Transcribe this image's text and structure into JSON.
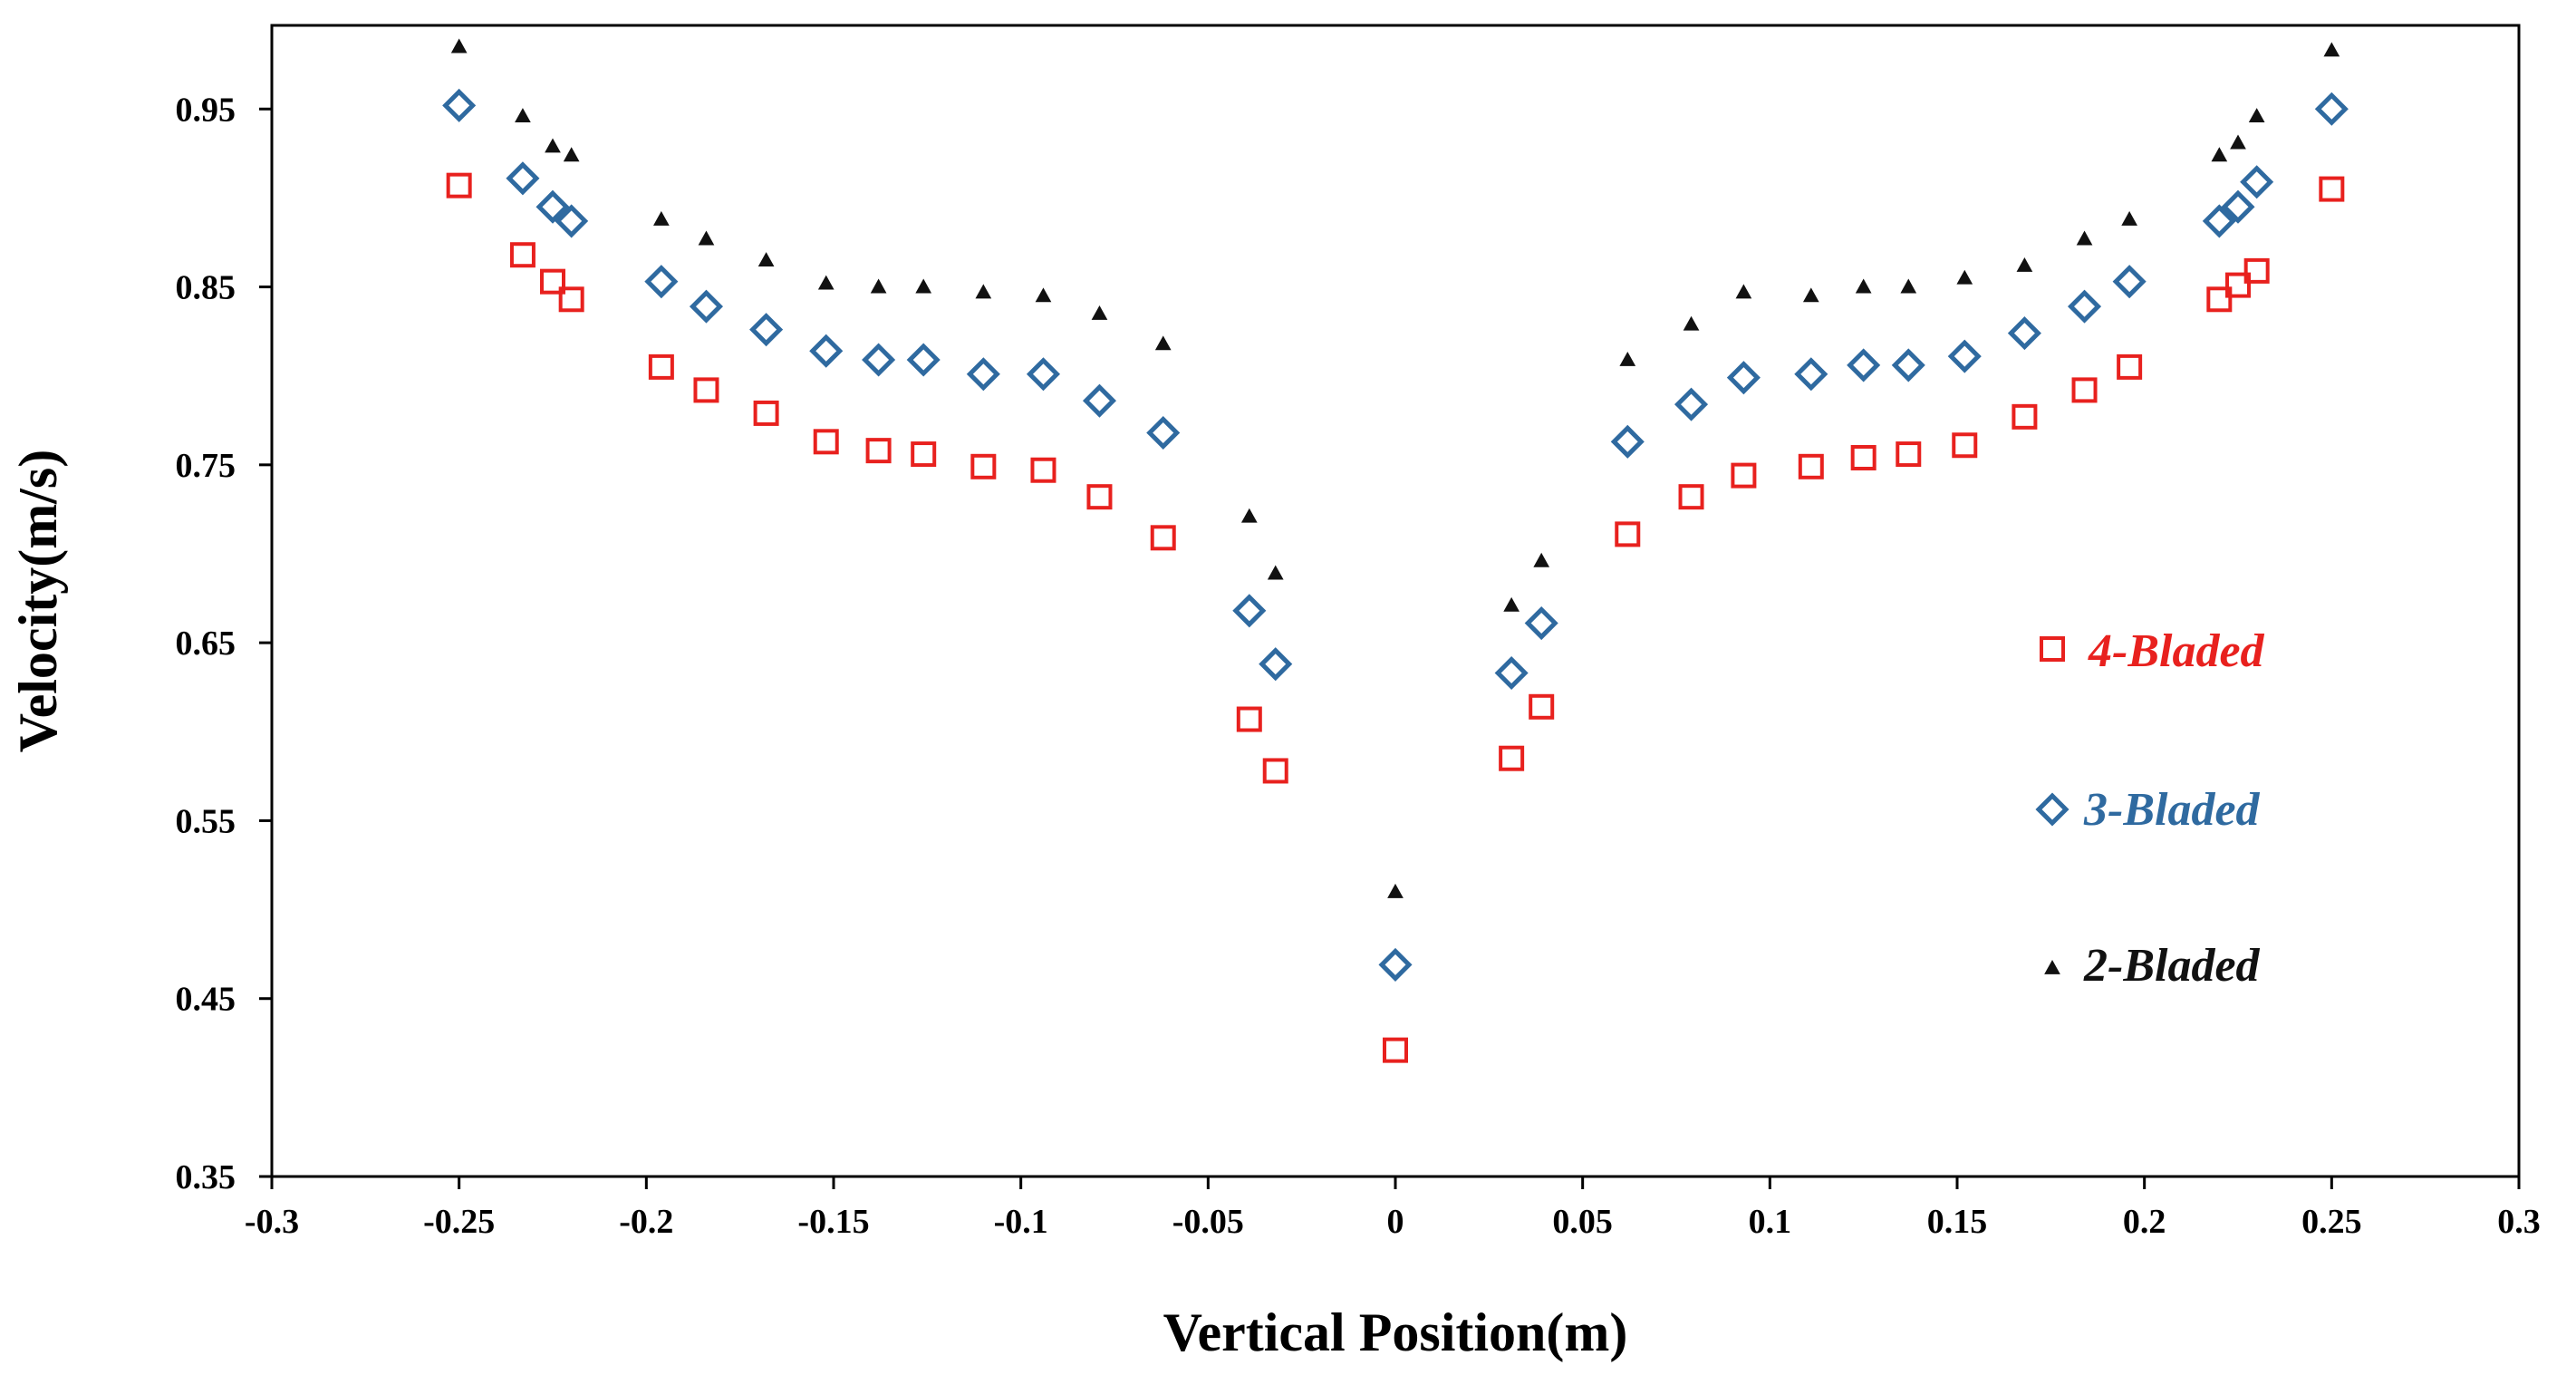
{
  "chart_data": {
    "type": "scatter",
    "title": "",
    "xlabel": "Vertical Position(m)",
    "ylabel": "Velocity(m/s)",
    "xlim": [
      -0.3,
      0.3
    ],
    "ylim": [
      0.35,
      1.0
    ],
    "x_ticks": [
      -0.3,
      -0.25,
      -0.2,
      -0.15,
      -0.1,
      -0.05,
      0,
      0.05,
      0.1,
      0.15,
      0.2,
      0.25,
      0.3
    ],
    "x_tick_labels": [
      "-0.3",
      "-0.25",
      "-0.2",
      "-0.15",
      "-0.1",
      "-0.05",
      "0",
      "0.05",
      "0.1",
      "0.15",
      "0.2",
      "0.25",
      "0.3"
    ],
    "y_ticks": [
      0.35,
      0.45,
      0.55,
      0.65,
      0.75,
      0.85,
      0.95
    ],
    "y_tick_labels": [
      "0.35",
      "0.45",
      "0.55",
      "0.65",
      "0.75",
      "0.85",
      "0.95"
    ],
    "grid": false,
    "legend_position": "right",
    "series": [
      {
        "name": "4-Bladed",
        "marker": "square",
        "color": "#e8211e",
        "x": [
          -0.25,
          -0.233,
          -0.225,
          -0.22,
          -0.196,
          -0.184,
          -0.168,
          -0.152,
          -0.138,
          -0.126,
          -0.11,
          -0.094,
          -0.079,
          -0.062,
          -0.039,
          -0.032,
          0,
          0.031,
          0.039,
          0.062,
          0.079,
          0.093,
          0.111,
          0.125,
          0.137,
          0.152,
          0.168,
          0.184,
          0.196,
          0.22,
          0.225,
          0.23,
          0.25
        ],
        "y": [
          0.907,
          0.868,
          0.853,
          0.843,
          0.805,
          0.792,
          0.779,
          0.763,
          0.758,
          0.756,
          0.749,
          0.747,
          0.732,
          0.709,
          0.607,
          0.578,
          0.421,
          0.585,
          0.614,
          0.711,
          0.732,
          0.744,
          0.749,
          0.754,
          0.756,
          0.761,
          0.777,
          0.792,
          0.805,
          0.843,
          0.851,
          0.859,
          0.905
        ]
      },
      {
        "name": "3-Bladed",
        "marker": "diamond",
        "color": "#2f6aa0",
        "x": [
          -0.25,
          -0.233,
          -0.225,
          -0.22,
          -0.196,
          -0.184,
          -0.168,
          -0.152,
          -0.138,
          -0.126,
          -0.11,
          -0.094,
          -0.079,
          -0.062,
          -0.039,
          -0.032,
          0,
          0.031,
          0.039,
          0.062,
          0.079,
          0.093,
          0.111,
          0.125,
          0.137,
          0.152,
          0.168,
          0.184,
          0.196,
          0.22,
          0.225,
          0.23,
          0.25
        ],
        "y": [
          0.952,
          0.911,
          0.895,
          0.887,
          0.853,
          0.839,
          0.826,
          0.814,
          0.809,
          0.809,
          0.801,
          0.801,
          0.786,
          0.768,
          0.668,
          0.638,
          0.469,
          0.633,
          0.661,
          0.763,
          0.784,
          0.799,
          0.801,
          0.806,
          0.806,
          0.811,
          0.824,
          0.839,
          0.853,
          0.887,
          0.895,
          0.909,
          0.95
        ]
      },
      {
        "name": "2-Bladed",
        "marker": "triangle",
        "color": "#111111",
        "x": [
          -0.25,
          -0.233,
          -0.225,
          -0.22,
          -0.196,
          -0.184,
          -0.168,
          -0.152,
          -0.138,
          -0.126,
          -0.11,
          -0.094,
          -0.079,
          -0.062,
          -0.039,
          -0.032,
          0,
          0.031,
          0.039,
          0.062,
          0.079,
          0.093,
          0.111,
          0.125,
          0.137,
          0.152,
          0.168,
          0.184,
          0.196,
          0.22,
          0.225,
          0.23,
          0.25
        ],
        "y": [
          0.985,
          0.946,
          0.929,
          0.924,
          0.888,
          0.877,
          0.865,
          0.852,
          0.85,
          0.85,
          0.847,
          0.845,
          0.835,
          0.818,
          0.721,
          0.689,
          0.51,
          0.671,
          0.696,
          0.809,
          0.829,
          0.847,
          0.845,
          0.85,
          0.85,
          0.855,
          0.862,
          0.877,
          0.888,
          0.924,
          0.931,
          0.946,
          0.983
        ]
      }
    ]
  }
}
